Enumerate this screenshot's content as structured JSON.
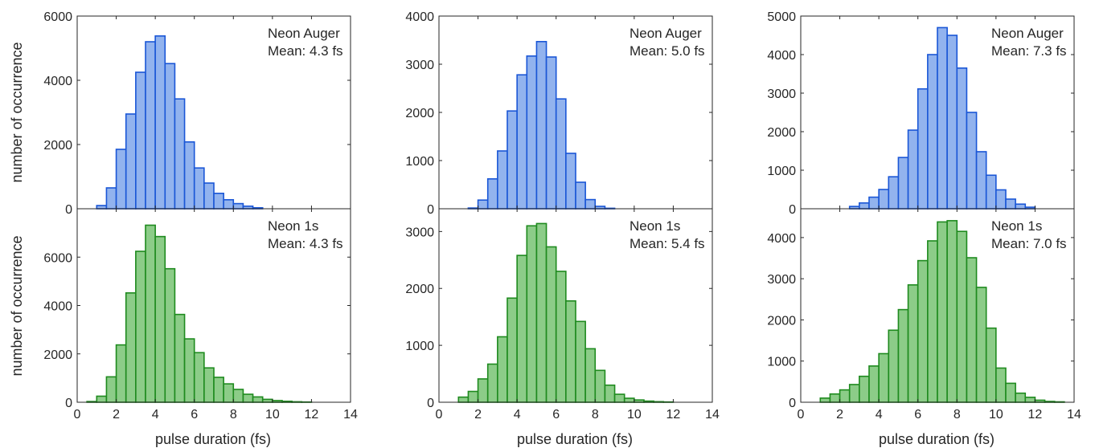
{
  "figure": {
    "xlabel": "pulse duration (fs)",
    "ylabel": "number of occurrence"
  },
  "colors": {
    "auger_fill": "#92b3ee",
    "auger_edge": "#1a56d6",
    "neon1s_fill": "#8ccc88",
    "neon1s_edge": "#1e8a1e",
    "axis": "#262626"
  },
  "chart_data": [
    {
      "type": "bar",
      "subtype": "histogram",
      "panel": "top-left",
      "annotation": [
        "Neon Auger",
        "Mean: 4.3 fs"
      ],
      "xlabel": "",
      "ylabel": "number of occurrence",
      "xlim": [
        0,
        14
      ],
      "ylim": [
        0,
        6000
      ],
      "xticks": [
        0,
        2,
        4,
        6,
        8,
        10,
        12,
        14
      ],
      "yticks": [
        0,
        2000,
        4000,
        6000
      ],
      "bin_width": 0.5,
      "x": [
        1.0,
        1.5,
        2.0,
        2.5,
        3.0,
        3.5,
        4.0,
        4.5,
        5.0,
        5.5,
        6.0,
        6.5,
        7.0,
        7.5,
        8.0,
        8.5,
        9.0
      ],
      "values": [
        100,
        650,
        1850,
        2950,
        4250,
        5200,
        5380,
        4520,
        3420,
        2080,
        1270,
        800,
        480,
        280,
        160,
        80,
        30
      ],
      "series": [
        {
          "name": "Neon Auger"
        }
      ]
    },
    {
      "type": "bar",
      "subtype": "histogram",
      "panel": "top-middle",
      "annotation": [
        "Neon Auger",
        "Mean: 5.0 fs"
      ],
      "xlabel": "",
      "ylabel": "",
      "xlim": [
        0,
        14
      ],
      "ylim": [
        0,
        4000
      ],
      "xticks": [
        0,
        2,
        4,
        6,
        8,
        10,
        12,
        14
      ],
      "yticks": [
        0,
        1000,
        2000,
        3000,
        4000
      ],
      "bin_width": 0.5,
      "x": [
        1.5,
        2.0,
        2.5,
        3.0,
        3.5,
        4.0,
        4.5,
        5.0,
        5.5,
        6.0,
        6.5,
        7.0,
        7.5,
        8.0,
        8.5
      ],
      "values": [
        15,
        180,
        620,
        1200,
        2030,
        2780,
        3170,
        3470,
        3150,
        2280,
        1150,
        550,
        190,
        50,
        10
      ],
      "series": [
        {
          "name": "Neon Auger"
        }
      ]
    },
    {
      "type": "bar",
      "subtype": "histogram",
      "panel": "top-right",
      "annotation": [
        "Neon Auger",
        "Mean: 7.3 fs"
      ],
      "xlabel": "",
      "ylabel": "",
      "xlim": [
        0,
        14
      ],
      "ylim": [
        0,
        5000
      ],
      "xticks": [
        0,
        2,
        4,
        6,
        8,
        10,
        12,
        14
      ],
      "yticks": [
        0,
        1000,
        2000,
        3000,
        4000,
        5000
      ],
      "bin_width": 0.5,
      "x": [
        2.5,
        3.0,
        3.5,
        4.0,
        4.5,
        5.0,
        5.5,
        6.0,
        6.5,
        7.0,
        7.5,
        8.0,
        8.5,
        9.0,
        9.5,
        10.0,
        10.5,
        11.0,
        11.5
      ],
      "values": [
        60,
        150,
        300,
        500,
        830,
        1330,
        2040,
        3110,
        4000,
        4700,
        4500,
        3650,
        2500,
        1480,
        870,
        490,
        250,
        120,
        40
      ],
      "series": [
        {
          "name": "Neon Auger"
        }
      ]
    },
    {
      "type": "bar",
      "subtype": "histogram",
      "panel": "bottom-left",
      "annotation": [
        "Neon 1s",
        "Mean: 4.3 fs"
      ],
      "xlabel": "pulse duration (fs)",
      "ylabel": "number of occurrence",
      "xlim": [
        0,
        14
      ],
      "ylim": [
        0,
        8000
      ],
      "xticks": [
        0,
        2,
        4,
        6,
        8,
        10,
        12,
        14
      ],
      "yticks": [
        0,
        2000,
        4000,
        6000
      ],
      "bin_width": 0.5,
      "x": [
        0.5,
        1.0,
        1.5,
        2.0,
        2.5,
        3.0,
        3.5,
        4.0,
        4.5,
        5.0,
        5.5,
        6.0,
        6.5,
        7.0,
        7.5,
        8.0,
        8.5,
        9.0,
        9.5,
        10.0,
        10.5,
        11.0,
        11.5
      ],
      "values": [
        30,
        250,
        1050,
        2370,
        4520,
        6240,
        7320,
        6850,
        5520,
        3630,
        2620,
        2050,
        1420,
        1030,
        760,
        530,
        330,
        220,
        120,
        70,
        40,
        20,
        10
      ],
      "series": [
        {
          "name": "Neon 1s"
        }
      ]
    },
    {
      "type": "bar",
      "subtype": "histogram",
      "panel": "bottom-middle",
      "annotation": [
        "Neon 1s",
        "Mean: 5.4 fs"
      ],
      "xlabel": "pulse duration (fs)",
      "ylabel": "",
      "xlim": [
        0,
        14
      ],
      "ylim": [
        0,
        3400
      ],
      "xticks": [
        0,
        2,
        4,
        6,
        8,
        10,
        12,
        14
      ],
      "yticks": [
        0,
        1000,
        2000,
        3000
      ],
      "bin_width": 0.5,
      "x": [
        1.0,
        1.5,
        2.0,
        2.5,
        3.0,
        3.5,
        4.0,
        4.5,
        5.0,
        5.5,
        6.0,
        6.5,
        7.0,
        7.5,
        8.0,
        8.5,
        9.0,
        9.5,
        10.0,
        10.5,
        11.0,
        11.5
      ],
      "values": [
        90,
        190,
        410,
        670,
        1150,
        1830,
        2580,
        3100,
        3140,
        2730,
        2300,
        1780,
        1420,
        940,
        560,
        300,
        140,
        70,
        40,
        20,
        10,
        5
      ],
      "series": [
        {
          "name": "Neon 1s"
        }
      ]
    },
    {
      "type": "bar",
      "subtype": "histogram",
      "panel": "bottom-right",
      "annotation": [
        "Neon 1s",
        "Mean: 7.0 fs"
      ],
      "xlabel": "pulse duration (fs)",
      "ylabel": "",
      "xlim": [
        0,
        14
      ],
      "ylim": [
        0,
        4700
      ],
      "xticks": [
        0,
        2,
        4,
        6,
        8,
        10,
        12,
        14
      ],
      "yticks": [
        0,
        1000,
        2000,
        3000,
        4000
      ],
      "bin_width": 0.5,
      "x": [
        1.0,
        1.5,
        2.0,
        2.5,
        3.0,
        3.5,
        4.0,
        4.5,
        5.0,
        5.5,
        6.0,
        6.5,
        7.0,
        7.5,
        8.0,
        8.5,
        9.0,
        9.5,
        10.0,
        10.5,
        11.0,
        11.5,
        12.0,
        12.5,
        13.0
      ],
      "values": [
        100,
        200,
        300,
        430,
        630,
        880,
        1180,
        1750,
        2250,
        2850,
        3440,
        3920,
        4380,
        4410,
        4150,
        3510,
        2790,
        1800,
        830,
        460,
        220,
        120,
        50,
        20,
        10
      ],
      "series": [
        {
          "name": "Neon 1s"
        }
      ]
    }
  ]
}
